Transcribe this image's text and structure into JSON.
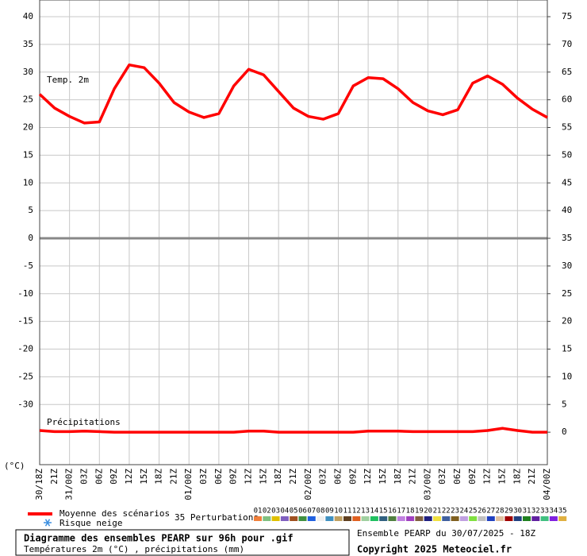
{
  "chart_data": {
    "type": "line",
    "title": "Diagramme des ensembles PEARP sur 96h pour .gif",
    "subtitle": "Températures 2m (°C) , précipitations (mm)",
    "run_label": "Ensemble PEARP du 30/07/2025 - 18Z",
    "copyright": "Copyright 2025 Meteociel.fr",
    "annotations": [
      "Temp. 2m",
      "Précipitations"
    ],
    "y_unit_label": "(°C)",
    "categories": [
      "30/18Z",
      "21Z",
      "31/00Z",
      "03Z",
      "06Z",
      "09Z",
      "12Z",
      "15Z",
      "18Z",
      "21Z",
      "01/00Z",
      "03Z",
      "06Z",
      "09Z",
      "12Z",
      "15Z",
      "18Z",
      "21Z",
      "02/00Z",
      "03Z",
      "06Z",
      "09Z",
      "12Z",
      "15Z",
      "18Z",
      "21Z",
      "03/00Z",
      "03Z",
      "06Z",
      "09Z",
      "12Z",
      "15Z",
      "18Z",
      "21Z",
      "04/00Z"
    ],
    "ylim": [
      -40,
      40
    ],
    "yticks": [
      -30,
      -25,
      -20,
      -15,
      -10,
      -5,
      0,
      5,
      10,
      15,
      20,
      25,
      30,
      35,
      40
    ],
    "y2lim": [
      -5,
      75
    ],
    "y2ticks": [
      0,
      5,
      10,
      15,
      20,
      25,
      30,
      35,
      40,
      45,
      50,
      55,
      60,
      65,
      70,
      75
    ],
    "grid": true,
    "series": [
      {
        "name": "Moyenne des scénarios",
        "color": "#ff0000",
        "values": [
          26,
          23.5,
          22,
          20.8,
          21,
          27,
          31.3,
          30.8,
          28,
          24.5,
          22.8,
          21.8,
          22.5,
          27.5,
          30.5,
          29.5,
          26.5,
          23.5,
          22,
          21.5,
          22.5,
          27.5,
          29,
          28.8,
          27,
          24.5,
          23,
          22.3,
          23.2,
          28,
          29.3,
          27.8,
          25.3,
          23.3,
          21.8
        ]
      }
    ],
    "precipitation": {
      "color": "#ff0000",
      "axis": "y2",
      "values": [
        0.3,
        0.1,
        0.1,
        0.2,
        0.1,
        0,
        0,
        0,
        0,
        0,
        0,
        0,
        0,
        0,
        0.2,
        0.2,
        0,
        0,
        0,
        0,
        0,
        0,
        0.2,
        0.2,
        0.2,
        0.1,
        0.1,
        0.1,
        0.1,
        0.1,
        0.3,
        0.7,
        0.3,
        0,
        0
      ]
    },
    "snow_legend": "Risque neige",
    "perturbations": {
      "label": "35 Perturbations",
      "members": [
        {
          "name": "01",
          "color": "#f0803c"
        },
        {
          "name": "02",
          "color": "#80c080"
        },
        {
          "name": "03",
          "color": "#e0c000"
        },
        {
          "name": "04",
          "color": "#8060c0"
        },
        {
          "name": "05",
          "color": "#a05020"
        },
        {
          "name": "06",
          "color": "#409040"
        },
        {
          "name": "07",
          "color": "#2060e0"
        },
        {
          "name": "08",
          "color": "#f0f0f0"
        },
        {
          "name": "09",
          "color": "#4090c0"
        },
        {
          "name": "10",
          "color": "#c0a060"
        },
        {
          "name": "11",
          "color": "#604020"
        },
        {
          "name": "12",
          "color": "#e06020"
        },
        {
          "name": "13",
          "color": "#a0d0a0"
        },
        {
          "name": "14",
          "color": "#20c060"
        },
        {
          "name": "15",
          "color": "#306080"
        },
        {
          "name": "16",
          "color": "#508040"
        },
        {
          "name": "17",
          "color": "#c080e0"
        },
        {
          "name": "18",
          "color": "#a040c0"
        },
        {
          "name": "19",
          "color": "#806040"
        },
        {
          "name": "20",
          "color": "#202080"
        },
        {
          "name": "21",
          "color": "#f0e040"
        },
        {
          "name": "22",
          "color": "#4060a0"
        },
        {
          "name": "23",
          "color": "#806020"
        },
        {
          "name": "24",
          "color": "#c0a0e0"
        },
        {
          "name": "25",
          "color": "#80e040"
        },
        {
          "name": "26",
          "color": "#c0c0c0"
        },
        {
          "name": "27",
          "color": "#2040c0"
        },
        {
          "name": "28",
          "color": "#e0c0a0"
        },
        {
          "name": "29",
          "color": "#a00000"
        },
        {
          "name": "30",
          "color": "#204080"
        },
        {
          "name": "31",
          "color": "#208020"
        },
        {
          "name": "32",
          "color": "#6020a0"
        },
        {
          "name": "33",
          "color": "#40c080"
        },
        {
          "name": "34",
          "color": "#8020e0"
        },
        {
          "name": "35",
          "color": "#e0b040"
        }
      ]
    }
  }
}
